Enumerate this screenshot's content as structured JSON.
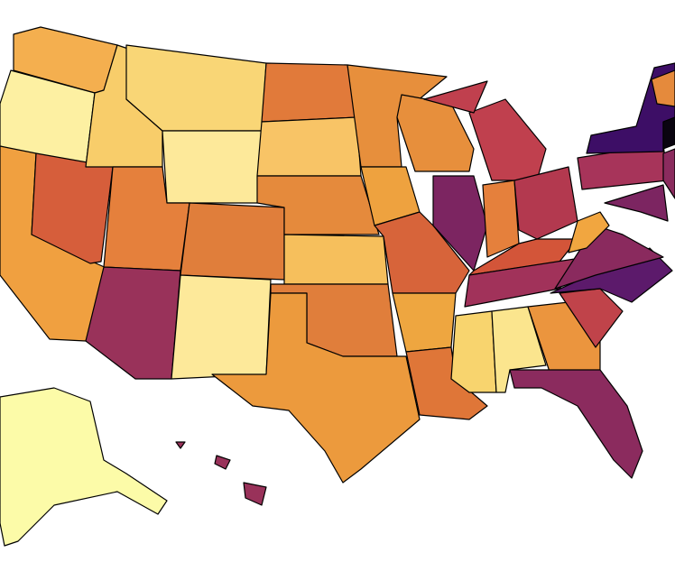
{
  "regions": [
    {
      "color": "#f4af4f"
    },
    {
      "color": "#fdf0a2"
    },
    {
      "color": "#f0a040"
    },
    {
      "color": "#d65e3b"
    },
    {
      "color": "#f8cd6a"
    },
    {
      "color": "#f9d676"
    },
    {
      "color": "#fde99a"
    },
    {
      "color": "#e5803c"
    },
    {
      "color": "#99325a"
    },
    {
      "color": "#e07e3b"
    },
    {
      "color": "#fde99a"
    },
    {
      "color": "#e17a3a"
    },
    {
      "color": "#f8c466"
    },
    {
      "color": "#e58a3c"
    },
    {
      "color": "#f6bf5c"
    },
    {
      "color": "#e07e3b"
    },
    {
      "color": "#ec9a3d"
    },
    {
      "color": "#e78f3c"
    },
    {
      "color": "#eea23f"
    },
    {
      "color": "#d7643a"
    },
    {
      "color": "#eea640"
    },
    {
      "color": "#df7638"
    },
    {
      "color": "#e78f3c"
    },
    {
      "color": "#7c2561"
    },
    {
      "color": "#c0404e"
    },
    {
      "color": "#c0404e"
    },
    {
      "color": "#e5803c"
    },
    {
      "color": "#b3394f"
    },
    {
      "color": "#d35539"
    },
    {
      "color": "#a1325a"
    },
    {
      "color": "#f8d46e"
    },
    {
      "color": "#fbe58e"
    },
    {
      "color": "#eb953e"
    },
    {
      "color": "#8b2b5e"
    },
    {
      "color": "#c0434a"
    },
    {
      "color": "#5c1a6b"
    },
    {
      "color": "#8a2a5e"
    },
    {
      "color": "#f1a640"
    },
    {
      "color": "#a7345a"
    },
    {
      "color": "#3d0e66"
    },
    {
      "color": "#8b2b5e"
    },
    {
      "color": "#7c2561"
    },
    {
      "color": "#0a0410"
    },
    {
      "color": "#e58a3c"
    },
    {
      "color": "#fcfba8"
    },
    {
      "color": "#99325a"
    },
    {
      "color": "#99325a"
    },
    {
      "color": "#99325a"
    }
  ]
}
